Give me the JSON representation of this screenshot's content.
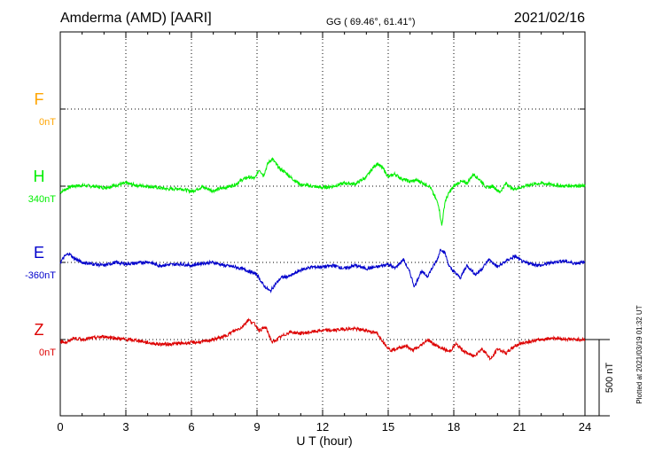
{
  "header": {
    "station": "Amderma (AMD)  [AARI]",
    "coords": "GG ( 69.46°,  61.41°)",
    "date": "2021/02/16"
  },
  "axis": {
    "xlabel": "U T (hour)",
    "xticks": [
      "0",
      "3",
      "6",
      "9",
      "12",
      "15",
      "18",
      "21",
      "24"
    ]
  },
  "scale": {
    "label": "500 nT",
    "nt": 500
  },
  "footer": {
    "plotted": "Plotted at 2021/03/19 01:32 UT"
  },
  "colors": {
    "F": "#ffa500",
    "H": "#00ee00",
    "E": "#0000cc",
    "Z": "#dd0000"
  },
  "chart_data": {
    "type": "line",
    "x_unit": "hour UT",
    "xlim": [
      0,
      24
    ],
    "series": [
      {
        "name": "F",
        "baseline_label": "0nT",
        "x": [],
        "values": []
      },
      {
        "name": "H",
        "baseline_label": "340nT",
        "x": [
          0,
          0.25,
          0.5,
          1,
          1.5,
          2,
          2.5,
          3,
          3.5,
          4,
          4.5,
          5,
          5.5,
          6,
          6.5,
          7,
          7.5,
          8,
          8.3,
          8.6,
          8.9,
          9.1,
          9.3,
          9.5,
          9.7,
          10,
          10.3,
          10.6,
          11,
          11.5,
          12,
          12.5,
          13,
          13.5,
          14,
          14.3,
          14.5,
          14.8,
          15,
          15.3,
          15.6,
          16,
          16.3,
          16.6,
          16.9,
          17.1,
          17.3,
          17.45,
          17.6,
          17.8,
          18,
          18.3,
          18.6,
          18.9,
          19.2,
          19.5,
          19.8,
          20.1,
          20.4,
          20.7,
          21,
          21.5,
          22,
          22.5,
          23,
          23.5,
          24
        ],
        "values": [
          -40,
          -20,
          0,
          5,
          0,
          -10,
          5,
          20,
          5,
          0,
          -10,
          -20,
          -15,
          -35,
          -5,
          -30,
          -10,
          10,
          40,
          60,
          50,
          110,
          70,
          150,
          180,
          120,
          90,
          50,
          10,
          0,
          -10,
          0,
          20,
          15,
          60,
          120,
          150,
          110,
          60,
          80,
          50,
          30,
          40,
          20,
          0,
          -60,
          -120,
          -260,
          -100,
          -40,
          0,
          30,
          20,
          80,
          40,
          -10,
          0,
          -40,
          20,
          -20,
          -10,
          10,
          20,
          10,
          0,
          5,
          0
        ]
      },
      {
        "name": "E",
        "baseline_label": "-360nT",
        "x": [
          0,
          0.2,
          0.4,
          0.6,
          1,
          1.5,
          2,
          2.5,
          3,
          3.5,
          4,
          4.5,
          5,
          5.5,
          6,
          6.5,
          7,
          7.5,
          8,
          8.5,
          9,
          9.3,
          9.6,
          9.8,
          10.1,
          10.5,
          11,
          11.5,
          12,
          12.5,
          13,
          13.5,
          14,
          14.5,
          15,
          15.3,
          15.7,
          16,
          16.2,
          16.5,
          16.8,
          17,
          17.25,
          17.4,
          17.6,
          17.8,
          18,
          18.3,
          18.6,
          19,
          19.3,
          19.6,
          20,
          20.4,
          20.8,
          21.2,
          21.6,
          22,
          22.5,
          23,
          23.5,
          24
        ],
        "values": [
          0,
          40,
          60,
          30,
          0,
          -10,
          -20,
          0,
          -10,
          -5,
          5,
          -20,
          -15,
          -10,
          -20,
          -5,
          0,
          -20,
          -30,
          -50,
          -80,
          -150,
          -190,
          -150,
          -100,
          -90,
          -50,
          -30,
          -30,
          -20,
          -40,
          -20,
          -40,
          -30,
          -10,
          -40,
          20,
          -70,
          -160,
          -60,
          -90,
          -40,
          20,
          90,
          60,
          -30,
          -60,
          -100,
          -20,
          -80,
          -40,
          20,
          -30,
          10,
          40,
          0,
          -10,
          -20,
          0,
          10,
          -5,
          0
        ]
      },
      {
        "name": "Z",
        "baseline_label": "0nT",
        "x": [
          0,
          0.3,
          0.6,
          1,
          1.5,
          2,
          2.5,
          3,
          3.5,
          4,
          4.5,
          5,
          5.5,
          6,
          6.5,
          7,
          7.5,
          8,
          8.3,
          8.6,
          8.9,
          9.1,
          9.4,
          9.7,
          10,
          10.5,
          11,
          11.5,
          12,
          12.5,
          13,
          13.5,
          14,
          14.5,
          14.8,
          15.1,
          15.4,
          15.8,
          16.1,
          16.4,
          16.8,
          17.2,
          17.5,
          17.8,
          18.1,
          18.5,
          18.9,
          19.3,
          19.7,
          20,
          20.4,
          20.8,
          21.2,
          21.6,
          22,
          22.5,
          23,
          23.5,
          24
        ],
        "values": [
          -10,
          -20,
          10,
          0,
          10,
          20,
          10,
          0,
          -5,
          -20,
          -30,
          -30,
          -25,
          -20,
          -15,
          0,
          20,
          60,
          80,
          130,
          100,
          60,
          80,
          -20,
          10,
          50,
          40,
          50,
          60,
          60,
          70,
          70,
          60,
          40,
          -20,
          -70,
          -60,
          -40,
          -70,
          -50,
          0,
          -40,
          -60,
          -80,
          -30,
          -80,
          -110,
          -60,
          -130,
          -60,
          -90,
          -40,
          -20,
          -10,
          0,
          10,
          5,
          0,
          0
        ]
      }
    ]
  }
}
